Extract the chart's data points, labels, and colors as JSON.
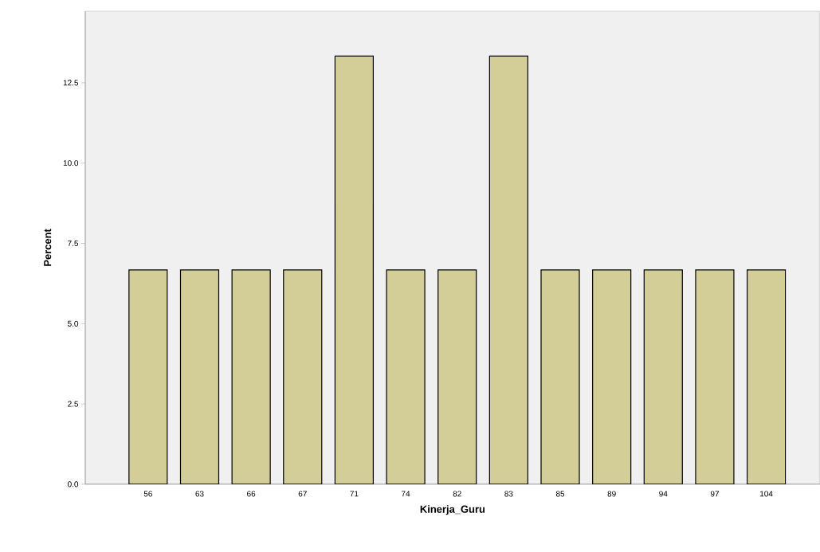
{
  "chart_data": {
    "type": "bar",
    "xlabel": "Kinerja_Guru",
    "ylabel": "Percent",
    "categories": [
      "56",
      "63",
      "66",
      "67",
      "71",
      "74",
      "82",
      "83",
      "85",
      "89",
      "94",
      "97",
      "104"
    ],
    "values": [
      6.67,
      6.67,
      6.67,
      6.67,
      13.33,
      6.67,
      6.67,
      13.33,
      6.67,
      6.67,
      6.67,
      6.67,
      6.67
    ],
    "color": "#d3ce97",
    "ylim": [
      0,
      14.73
    ],
    "yticks": [
      {
        "value": 0,
        "label": "0.0"
      },
      {
        "value": 2.5,
        "label": "2.5"
      },
      {
        "value": 5,
        "label": "5.0"
      },
      {
        "value": 7.5,
        "label": "7.5"
      },
      {
        "value": 10,
        "label": "10.0"
      },
      {
        "value": 12.5,
        "label": "12.5"
      }
    ],
    "grid": false
  }
}
